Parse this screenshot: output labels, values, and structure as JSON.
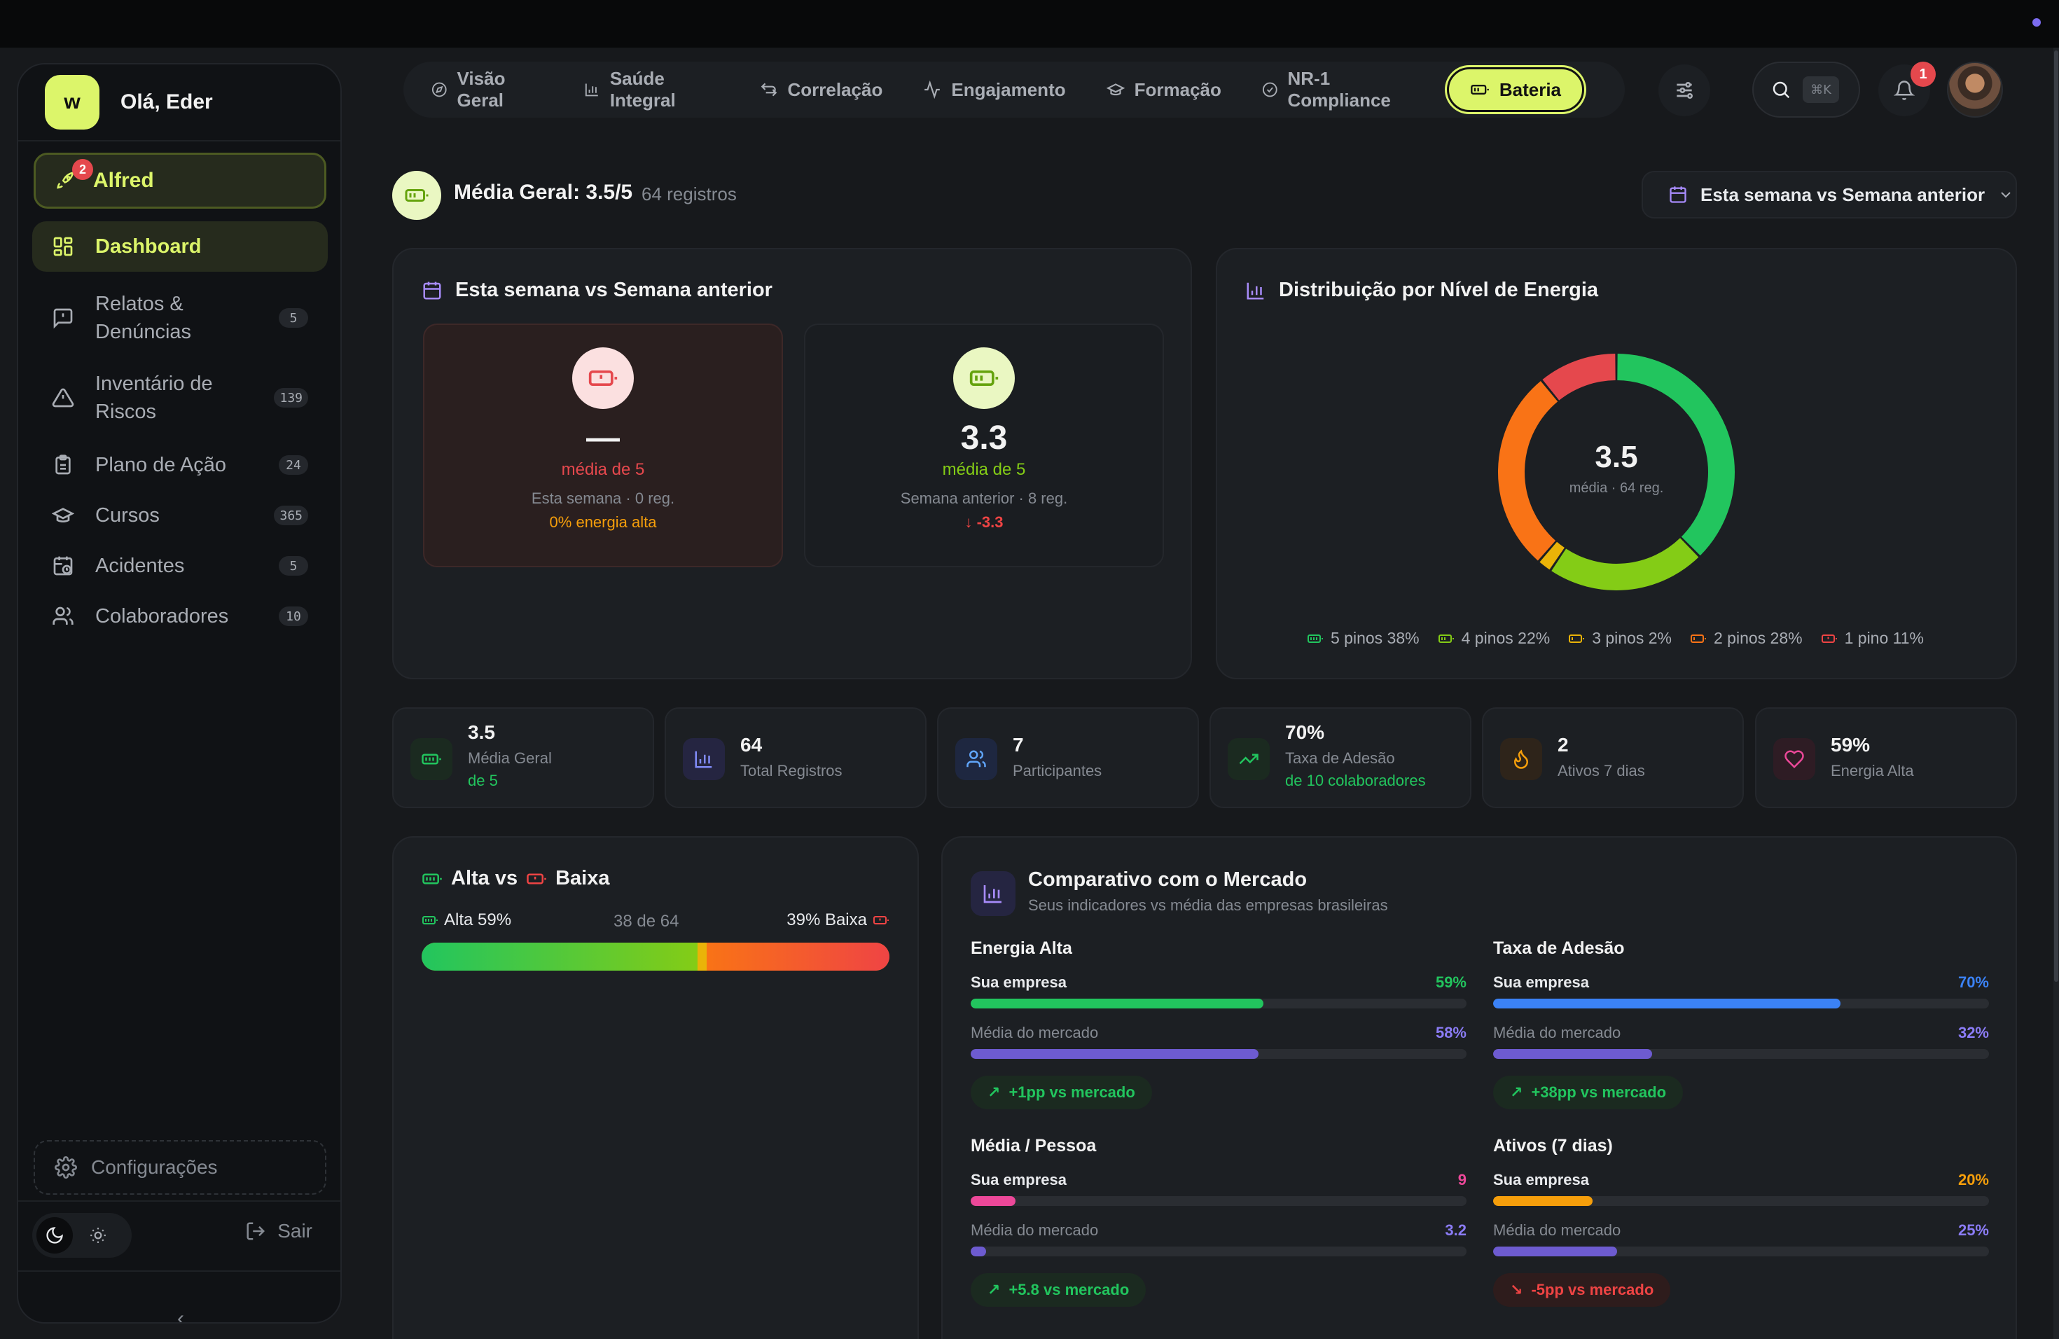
{
  "sidebar": {
    "logo": "w",
    "greeting": "Olá, Eder",
    "alfred": {
      "label": "Alfred",
      "badge": "2"
    },
    "items": [
      {
        "label": "Dashboard",
        "count": ""
      },
      {
        "label": "Relatos & Denúncias",
        "count": "5"
      },
      {
        "label": "Inventário de Riscos",
        "count": "139"
      },
      {
        "label": "Plano de Ação",
        "count": "24"
      },
      {
        "label": "Cursos",
        "count": "365"
      },
      {
        "label": "Acidentes",
        "count": "5"
      },
      {
        "label": "Colaboradores",
        "count": "10"
      }
    ],
    "config": "Configurações",
    "logout": "Sair",
    "collapse": "‹"
  },
  "tabs": [
    {
      "label": "Visão Geral",
      "icon": "compass-icon"
    },
    {
      "label": "Saúde Integral",
      "icon": "bar-chart-icon"
    },
    {
      "label": "Correlação",
      "icon": "arrows-icon"
    },
    {
      "label": "Engajamento",
      "icon": "activity-icon"
    },
    {
      "label": "Formação",
      "icon": "graduation-cap-icon"
    },
    {
      "label": "NR-1 Compliance",
      "icon": "check-circle-icon"
    },
    {
      "label": "Bateria",
      "icon": "battery-icon"
    }
  ],
  "header": {
    "search_kbd": "⌘K",
    "notifications_badge": "1"
  },
  "summary": {
    "title": "Média Geral: 3.5/5",
    "records": "64 registros",
    "period": "Esta semana vs Semana anterior"
  },
  "week_compare": {
    "title": "Esta semana vs Semana anterior",
    "current": {
      "value": "—",
      "media": "média de 5",
      "meta": "Esta semana · 0 reg.",
      "extra": "0% energia alta"
    },
    "previous": {
      "value": "3.3",
      "media": "média de 5",
      "meta": "Semana anterior · 8 reg.",
      "extra": "-3.3"
    }
  },
  "distribution": {
    "title": "Distribuição por Nível de Energia",
    "center_value": "3.5",
    "center_label": "média · 64 reg.",
    "legend": [
      {
        "label": "5 pinos 38%",
        "color": "#22c55e"
      },
      {
        "label": "4 pinos 22%",
        "color": "#84cc16"
      },
      {
        "label": "3 pinos 2%",
        "color": "#eab308"
      },
      {
        "label": "2 pinos 28%",
        "color": "#f97316"
      },
      {
        "label": "1 pino 11%",
        "color": "#ef4444"
      }
    ]
  },
  "chart_data": {
    "type": "pie",
    "title": "Distribuição por Nível de Energia",
    "categories": [
      "5 pinos",
      "4 pinos",
      "3 pinos",
      "2 pinos",
      "1 pino"
    ],
    "values": [
      38,
      22,
      2,
      28,
      11
    ],
    "colors": [
      "#22c55e",
      "#84cc16",
      "#eab308",
      "#f97316",
      "#e5484d"
    ]
  },
  "stats": [
    {
      "value": "3.5",
      "label": "Média Geral",
      "sub": "de 5",
      "icon": "battery-icon"
    },
    {
      "value": "64",
      "label": "Total Registros",
      "sub": "",
      "icon": "bar-chart-icon"
    },
    {
      "value": "7",
      "label": "Participantes",
      "sub": "",
      "icon": "users-icon"
    },
    {
      "value": "70%",
      "label": "Taxa de Adesão",
      "sub": "de 10 colaboradores",
      "icon": "trending-up-icon"
    },
    {
      "value": "2",
      "label": "Ativos 7 dias",
      "sub": "",
      "icon": "flame-icon"
    },
    {
      "value": "59%",
      "label": "Energia Alta",
      "sub": "",
      "icon": "heart-icon"
    }
  ],
  "high_low": {
    "title_a": "Alta vs",
    "title_b": "Baixa",
    "alta": "Alta 59%",
    "count": "38 de 64",
    "baixa": "39% Baixa",
    "alta_fraction": 0.59,
    "baixa_fraction": 0.39
  },
  "market": {
    "title": "Comparativo com o Mercado",
    "subtitle": "Seus indicadores vs média das empresas brasileiras",
    "company_label": "Sua empresa",
    "market_label": "Média do mercado",
    "metrics": [
      {
        "title": "Energia Alta",
        "company": "59%",
        "market": "58%",
        "company_fraction": 0.59,
        "market_fraction": 0.58,
        "delta": "+1pp vs mercado",
        "positive": true,
        "company_color": "#22c55e"
      },
      {
        "title": "Taxa de Adesão",
        "company": "70%",
        "market": "32%",
        "company_fraction": 0.7,
        "market_fraction": 0.32,
        "delta": "+38pp vs mercado",
        "positive": true,
        "company_color": "#3b82f6"
      },
      {
        "title": "Média / Pessoa",
        "company": "9",
        "market": "3.2",
        "company_fraction": 0.09,
        "market_fraction": 0.03,
        "delta": "+5.8 vs mercado",
        "positive": true,
        "company_color": "#ec4899"
      },
      {
        "title": "Ativos (7 dias)",
        "company": "20%",
        "market": "25%",
        "company_fraction": 0.2,
        "market_fraction": 0.25,
        "delta": "-5pp vs mercado",
        "positive": false,
        "company_color": "#f59e0b"
      }
    ]
  }
}
